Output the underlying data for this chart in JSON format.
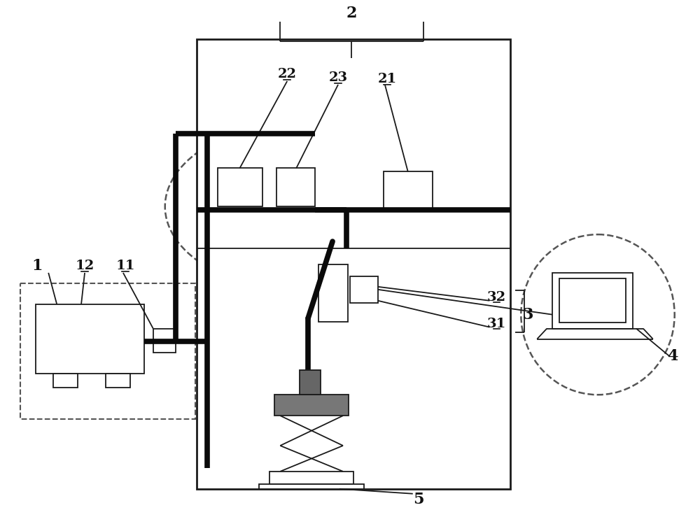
{
  "bg_color": "#ffffff",
  "lc": "#1a1a1a",
  "tlc": "#0a0a0a",
  "dc": "#555555",
  "fig_w": 10.0,
  "fig_h": 7.39,
  "dpi": 100
}
